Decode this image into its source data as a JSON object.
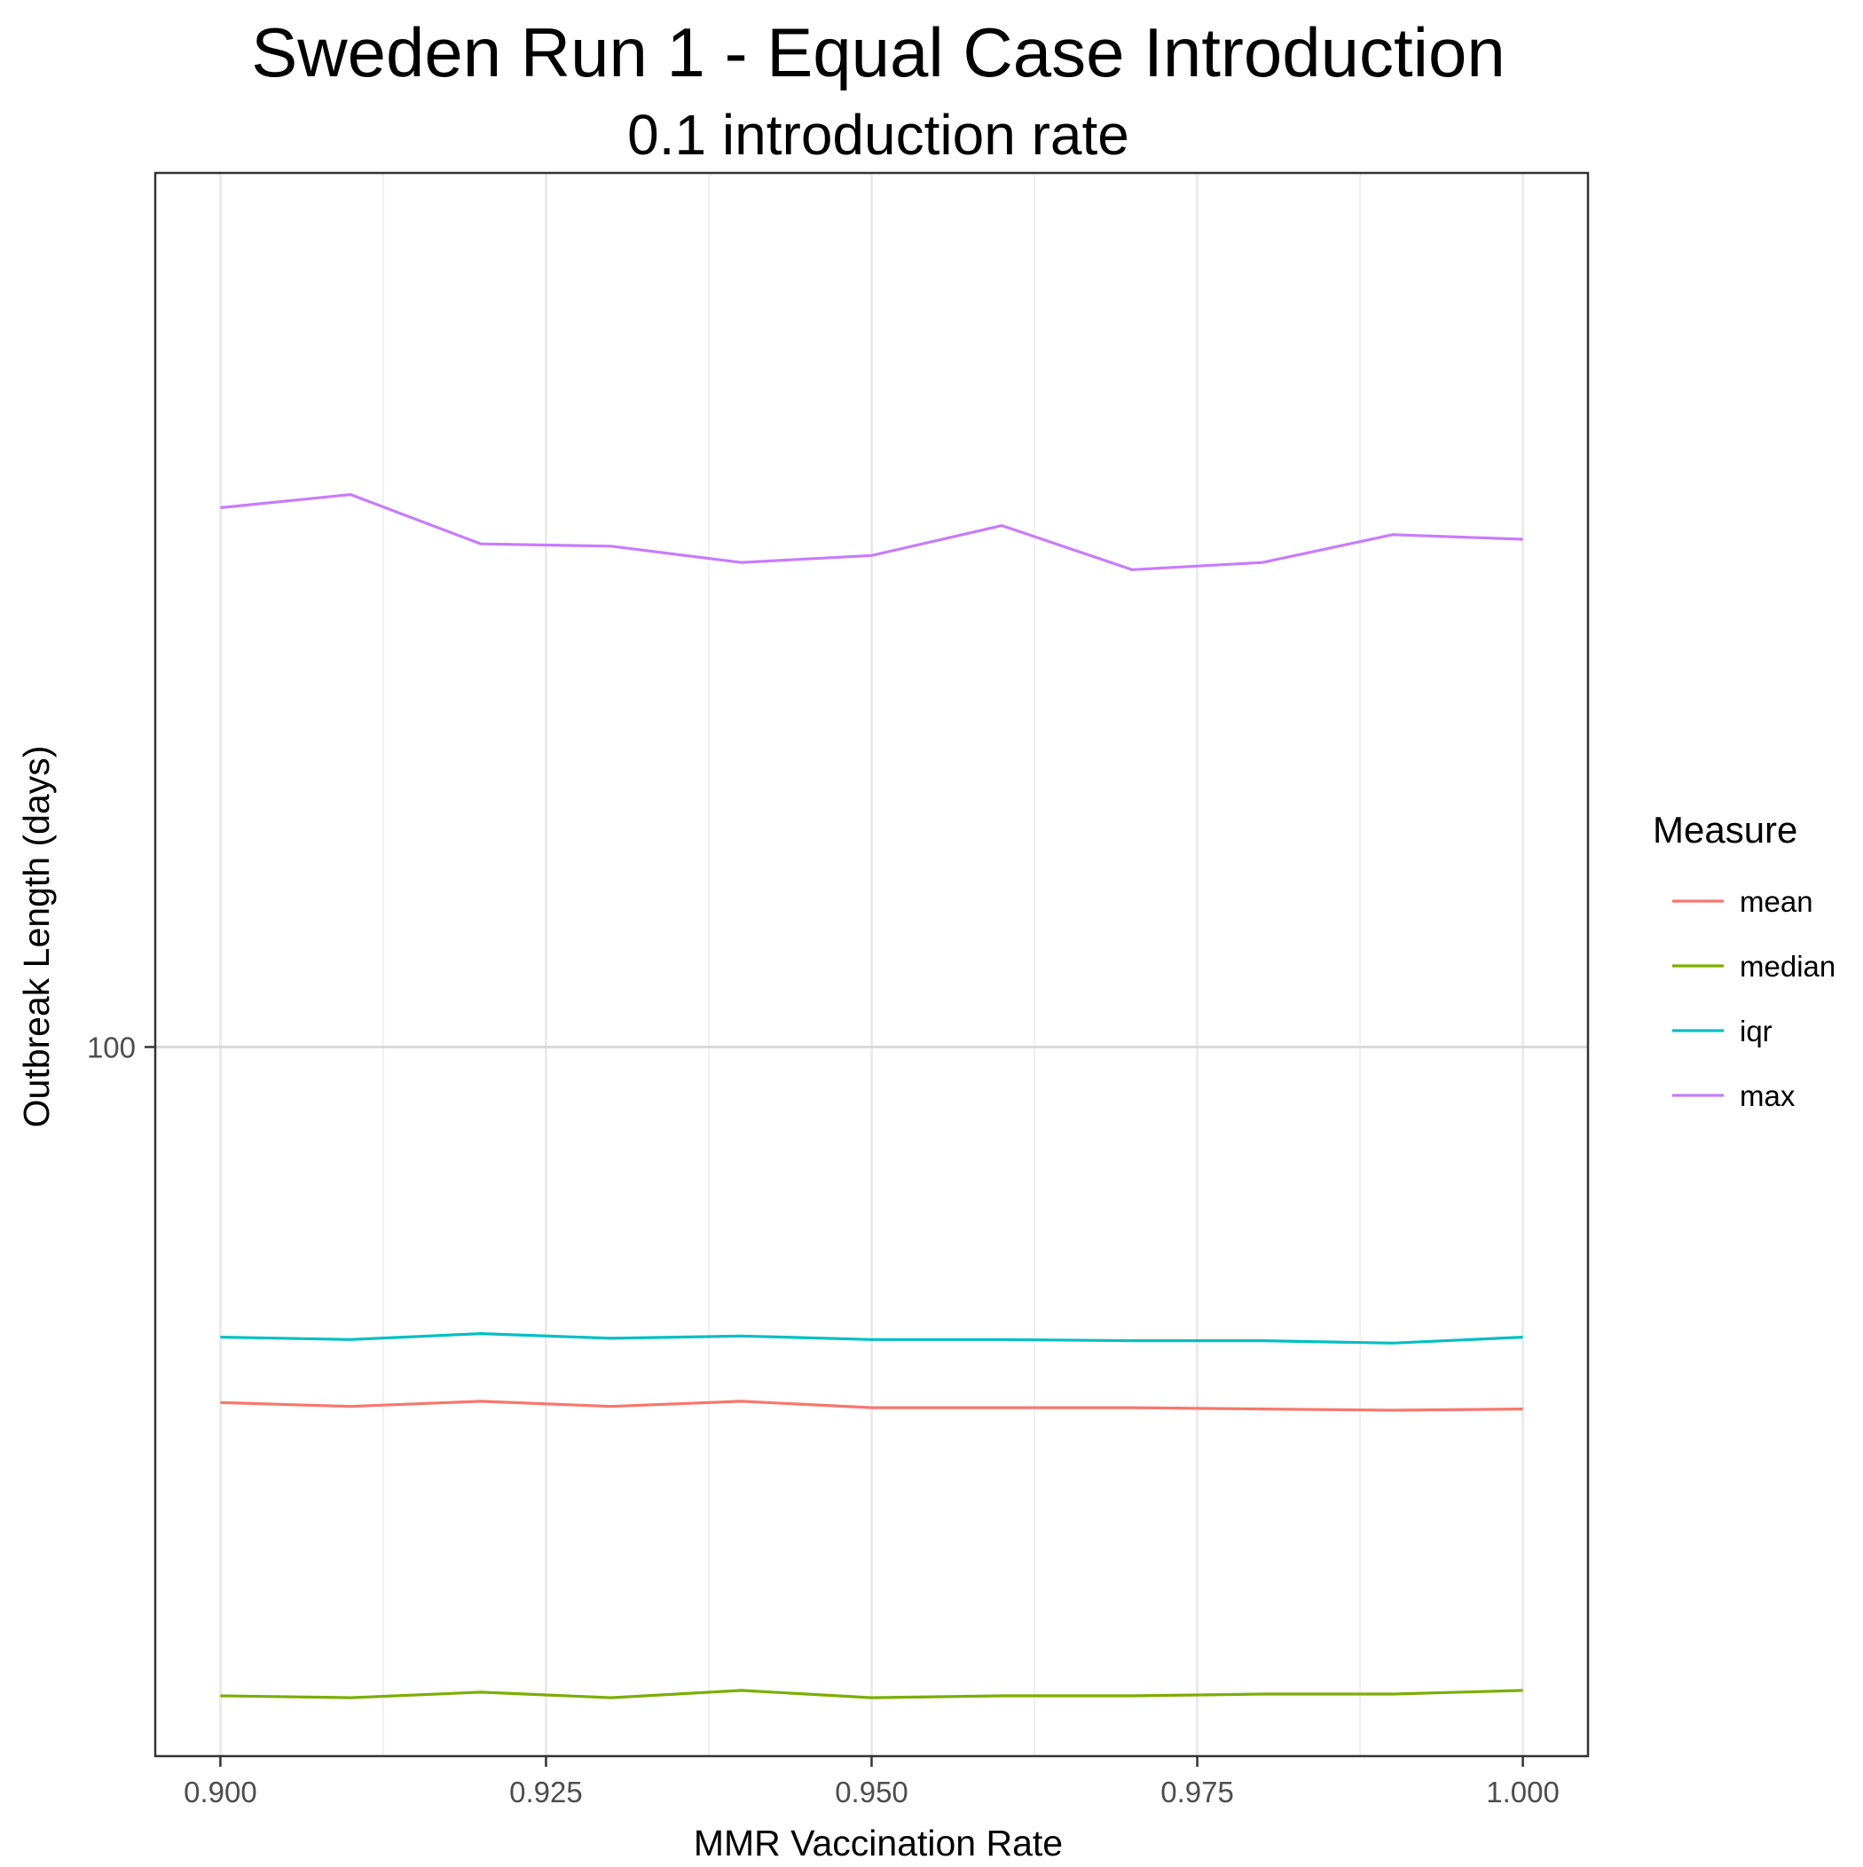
{
  "chart_data": {
    "type": "line",
    "title": "Sweden Run 1 - Equal Case Introduction",
    "subtitle": "0.1 introduction rate",
    "xlabel": "MMR Vaccination Rate",
    "ylabel": "Outbreak Length (days)",
    "y_scale": "log10",
    "xlim": [
      0.895,
      1.005
    ],
    "ylim": [
      43,
      283
    ],
    "grid": true,
    "x_ticks": [
      {
        "value": 0.9,
        "label": "0.900"
      },
      {
        "value": 0.925,
        "label": "0.925"
      },
      {
        "value": 0.95,
        "label": "0.950"
      },
      {
        "value": 0.975,
        "label": "0.975"
      },
      {
        "value": 1.0,
        "label": "1.000"
      }
    ],
    "x_minor_ticks": [
      0.9125,
      0.9375,
      0.9625,
      0.9875
    ],
    "y_ticks": [
      {
        "value": 100,
        "label": "100"
      }
    ],
    "x": [
      0.9,
      0.91,
      0.92,
      0.93,
      0.94,
      0.95,
      0.96,
      0.97,
      0.98,
      0.99,
      1.0
    ],
    "series": [
      {
        "name": "mean",
        "color": "#F8766D",
        "values": [
          65.5,
          65.2,
          65.6,
          65.2,
          65.6,
          65.1,
          65.1,
          65.1,
          65.0,
          64.9,
          65.0
        ]
      },
      {
        "name": "median",
        "color": "#7CAE00",
        "values": [
          46.2,
          46.1,
          46.4,
          46.1,
          46.5,
          46.1,
          46.2,
          46.2,
          46.3,
          46.3,
          46.5
        ]
      },
      {
        "name": "iqr",
        "color": "#00BFC4",
        "values": [
          70.8,
          70.6,
          71.1,
          70.7,
          70.9,
          70.6,
          70.6,
          70.5,
          70.5,
          70.3,
          70.8
        ]
      },
      {
        "name": "max",
        "color": "#C77CFF",
        "values": [
          190.0,
          193.0,
          182.0,
          181.5,
          178.0,
          179.5,
          186.0,
          176.5,
          178.0,
          184.0,
          183.0
        ]
      }
    ],
    "legend": {
      "title": "Measure",
      "position": "right",
      "entries": [
        "mean",
        "median",
        "iqr",
        "max"
      ]
    }
  }
}
